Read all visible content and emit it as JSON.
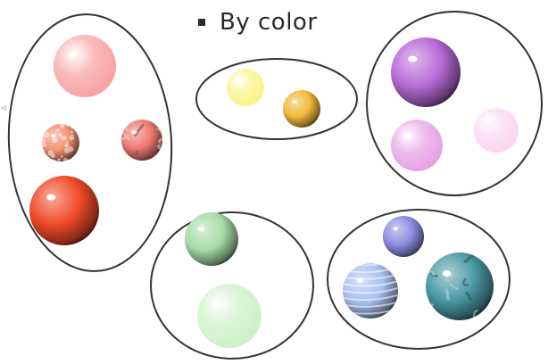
{
  "heading": {
    "bullet_icon": "square-bullet-icon",
    "text": "By color"
  },
  "groups": [
    {
      "id": "red",
      "spheres": [
        {
          "id": "pink-glossy",
          "color": "#f79a9a",
          "style": "soft"
        },
        {
          "id": "coral-speckled",
          "color": "#f49070",
          "style": "speckled"
        },
        {
          "id": "red-marbled",
          "color": "#ee7a72",
          "style": "marbled"
        },
        {
          "id": "red-orange",
          "color": "#f04a28",
          "style": "solid"
        }
      ]
    },
    {
      "id": "yellow",
      "spheres": [
        {
          "id": "pale-yellow",
          "color": "#fbf27a",
          "style": "soft"
        },
        {
          "id": "amber",
          "color": "#f2b83a",
          "style": "solid"
        }
      ]
    },
    {
      "id": "purple",
      "spheres": [
        {
          "id": "violet",
          "color": "#b86bd8",
          "style": "solid"
        },
        {
          "id": "orchid",
          "color": "#e49ae2",
          "style": "soft"
        },
        {
          "id": "pale-pink",
          "color": "#fbd2f2",
          "style": "soft"
        }
      ]
    },
    {
      "id": "green",
      "spheres": [
        {
          "id": "mint",
          "color": "#a8dca8",
          "style": "solid"
        },
        {
          "id": "pale-green",
          "color": "#c8f0c2",
          "style": "soft"
        }
      ]
    },
    {
      "id": "blue",
      "spheres": [
        {
          "id": "periwinkle",
          "color": "#8c8ee2",
          "style": "solid"
        },
        {
          "id": "light-blue-marbled",
          "color": "#a8c0f2",
          "style": "banded"
        },
        {
          "id": "teal-marbled",
          "color": "#4a9aa4",
          "style": "marbled"
        }
      ]
    }
  ],
  "outline_color": "#333333"
}
